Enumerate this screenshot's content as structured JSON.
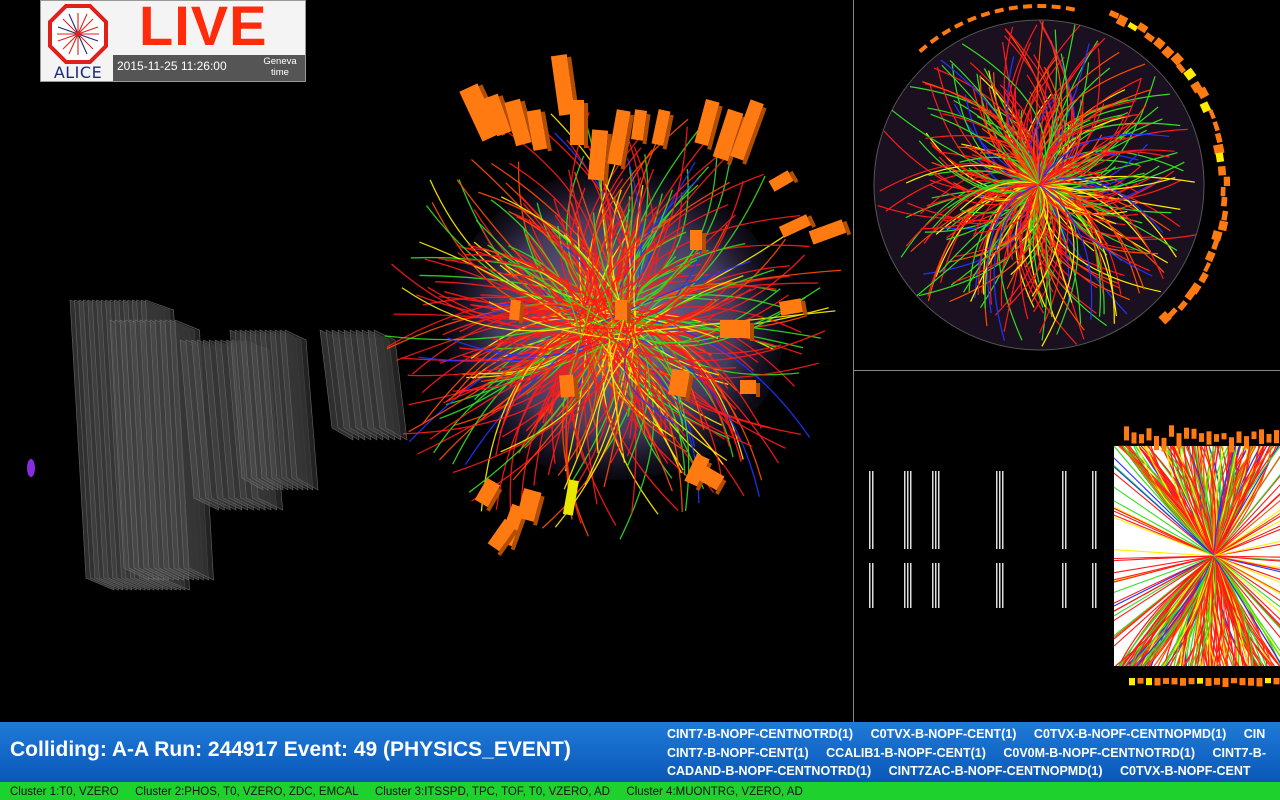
{
  "live_badge": {
    "logo_text": "ALICE",
    "live_label": "LIVE",
    "datetime": "2015-11-25 11:26:00",
    "timezone": "Geneva time"
  },
  "event": {
    "summary": "Colliding: A-A Run: 244917  Event: 49 (PHYSICS_EVENT)"
  },
  "triggers": [
    [
      "CINT7-B-NOPF-CENTNOTRD(1)",
      "C0TVX-B-NOPF-CENT(1)",
      "C0TVX-B-NOPF-CENTNOPMD(1)",
      "CIN"
    ],
    [
      "CINT7-B-NOPF-CENT(1)",
      "CCALIB1-B-NOPF-CENT(1)",
      "C0V0M-B-NOPF-CENTNOTRD(1)",
      "CINT7-B-"
    ],
    [
      "CADAND-B-NOPF-CENTNOTRD(1)",
      "CINT7ZAC-B-NOPF-CENTNOPMD(1)",
      "C0TVX-B-NOPF-CENT"
    ]
  ],
  "clusters": [
    "Cluster 1:T0, VZERO",
    "Cluster 2:PHOS, T0, VZERO, ZDC, EMCAL",
    "Cluster 3:ITSSPD, TPC, TOF, T0, VZERO, AD",
    "Cluster 4:MUONTRG, VZERO, AD"
  ],
  "colors": {
    "live_red": "#ff2b0a",
    "status_blue": "#1f7ad8",
    "cluster_green": "#1fd12c",
    "track_colors": [
      "#ff1a1a",
      "#ff4d00",
      "#33dd22",
      "#ffee00",
      "#2233ff",
      "#ff8800"
    ],
    "calorimeter_orange": "#ff7a10"
  },
  "icons": {
    "logo": "alice-octagon-logo"
  }
}
